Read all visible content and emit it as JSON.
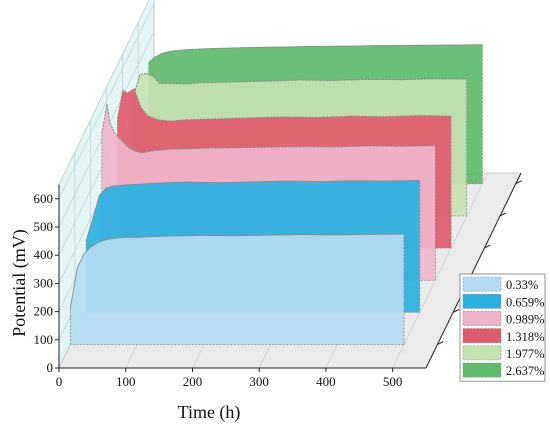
{
  "chart_data": {
    "type": "area",
    "style": "3d-waterfall",
    "xlabel": "Time (h)",
    "ylabel": "Potential (mV)",
    "xlim": [
      0,
      550
    ],
    "ylim": [
      0,
      650
    ],
    "x_ticks": [
      "0",
      "100",
      "200",
      "300",
      "400",
      "500"
    ],
    "y_ticks": [
      "0",
      "100",
      "200",
      "300",
      "400",
      "500",
      "600"
    ],
    "legend_position": "right",
    "series": [
      {
        "name": "0.33%",
        "color": "#b3dcf2",
        "x": [
          0,
          10,
          20,
          30,
          40,
          50,
          60,
          70,
          80,
          100,
          110,
          150,
          200,
          250,
          300,
          350,
          400,
          450,
          500
        ],
        "y": [
          130,
          270,
          320,
          345,
          360,
          370,
          375,
          378,
          380,
          380,
          382,
          385,
          387,
          386,
          388,
          390,
          389,
          391,
          392
        ]
      },
      {
        "name": "0.659%",
        "color": "#2ab0e0",
        "x": [
          0,
          10,
          20,
          30,
          40,
          60,
          100,
          150,
          200,
          250,
          300,
          350,
          400,
          450,
          500
        ],
        "y": [
          255,
          330,
          415,
          440,
          448,
          452,
          458,
          462,
          460,
          463,
          466,
          464,
          467,
          466,
          468
        ]
      },
      {
        "name": "0.989%",
        "color": "#efb4cb",
        "x": [
          0,
          8,
          12,
          20,
          30,
          40,
          50,
          60,
          80,
          100,
          150,
          200,
          250,
          300,
          350,
          400,
          450,
          500
        ],
        "y": [
          520,
          625,
          560,
          520,
          495,
          470,
          458,
          452,
          460,
          464,
          468,
          470,
          472,
          474,
          473,
          476,
          475,
          477
        ]
      },
      {
        "name": "1.318%",
        "color": "#e25a6e",
        "x": [
          0,
          8,
          15,
          25,
          35,
          45,
          60,
          80,
          100,
          150,
          200,
          250,
          300,
          350,
          400,
          450,
          500
        ],
        "y": [
          460,
          560,
          550,
          565,
          500,
          470,
          455,
          450,
          455,
          458,
          462,
          465,
          463,
          468,
          466,
          470,
          468
        ]
      },
      {
        "name": "1.977%",
        "color": "#c5e2b2",
        "x": [
          0,
          10,
          20,
          30,
          40,
          60,
          80,
          100,
          150,
          200,
          250,
          300,
          350,
          400,
          450,
          500
        ],
        "y": [
          420,
          500,
          505,
          495,
          470,
          470,
          468,
          472,
          475,
          478,
          482,
          480,
          484,
          483,
          486,
          485
        ]
      },
      {
        "name": "2.637%",
        "color": "#5dbb6b",
        "x": [
          0,
          10,
          20,
          30,
          40,
          60,
          100,
          150,
          200,
          250,
          300,
          350,
          400,
          450,
          500
        ],
        "y": [
          430,
          450,
          462,
          468,
          472,
          476,
          480,
          483,
          485,
          487,
          488,
          490,
          491,
          492,
          493
        ]
      }
    ]
  },
  "colors": {
    "back_wall": "#e3f5f5",
    "grid": "#bcc7c7",
    "floor": "#ebebeb",
    "outline": "#888888"
  }
}
